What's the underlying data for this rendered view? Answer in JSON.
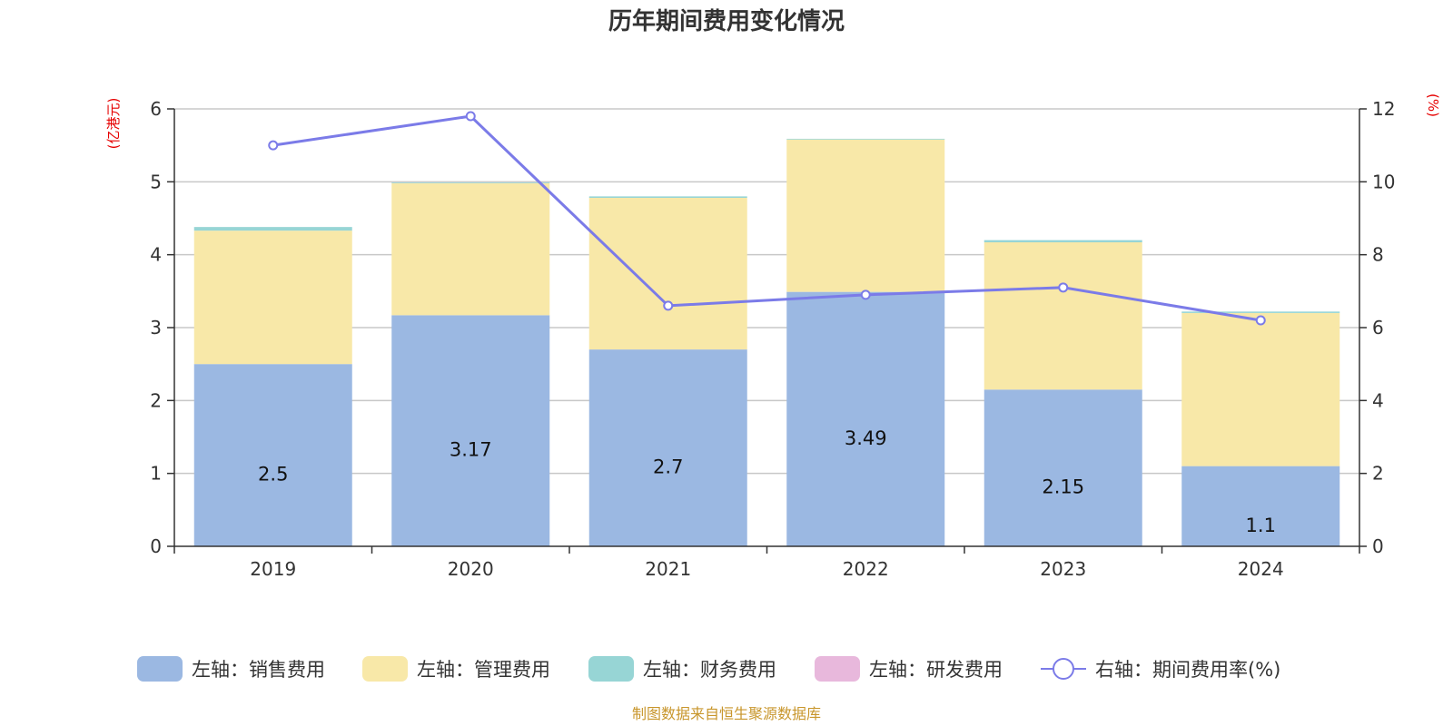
{
  "chart_data": {
    "type": "bar",
    "stacked": true,
    "title": "历年期间费用变化情况",
    "categories": [
      "2019",
      "2020",
      "2021",
      "2022",
      "2023",
      "2024"
    ],
    "left_axis": {
      "unit": "(亿港元)",
      "range": [
        0,
        6
      ],
      "ticks": [
        "0",
        "1",
        "2",
        "3",
        "4",
        "5",
        "6"
      ]
    },
    "right_axis": {
      "unit": "(%)",
      "range": [
        0,
        12
      ],
      "ticks": [
        "0",
        "2",
        "4",
        "6",
        "8",
        "10",
        "12"
      ]
    },
    "grid": true,
    "series": [
      {
        "name": "左轴：销售费用",
        "axis": "left",
        "kind": "bar",
        "color": "#9bb8e2",
        "values": [
          2.5,
          3.17,
          2.7,
          3.49,
          2.15,
          1.1
        ],
        "labels": [
          "2.5",
          "3.17",
          "2.7",
          "3.49",
          "2.15",
          "1.1"
        ]
      },
      {
        "name": "左轴：管理费用",
        "axis": "left",
        "kind": "bar",
        "color": "#f8e8a8",
        "values": [
          1.83,
          1.81,
          2.08,
          2.09,
          2.02,
          2.1
        ]
      },
      {
        "name": "左轴：财务费用",
        "axis": "left",
        "kind": "bar",
        "color": "#97d5d5",
        "values": [
          0.05,
          0.01,
          0.02,
          0.01,
          0.03,
          0.02
        ]
      },
      {
        "name": "左轴：研发费用",
        "axis": "left",
        "kind": "bar",
        "color": "#e8b8dc",
        "values": [
          0,
          0,
          0,
          0,
          0,
          0
        ]
      },
      {
        "name": "右轴：期间费用率(%)",
        "axis": "right",
        "kind": "line",
        "color": "#7b7be8",
        "values": [
          11.0,
          11.8,
          6.6,
          6.9,
          7.1,
          6.2
        ]
      }
    ],
    "legend_position": "bottom"
  },
  "source": "制图数据来自恒生聚源数据库"
}
